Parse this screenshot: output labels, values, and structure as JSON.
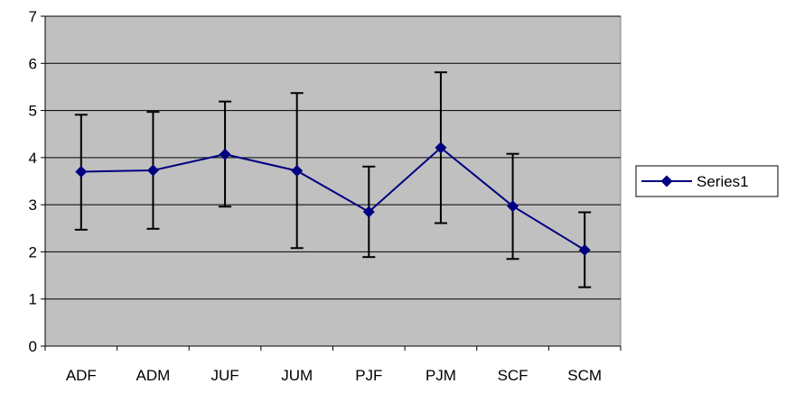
{
  "chart_data": {
    "type": "line",
    "categories": [
      "ADF",
      "ADM",
      "JUF",
      "JUM",
      "PJF",
      "PJM",
      "SCF",
      "SCM"
    ],
    "series": [
      {
        "name": "Series1",
        "values": [
          3.7,
          3.73,
          4.07,
          3.72,
          2.85,
          4.21,
          2.97,
          2.04
        ],
        "error_low": [
          2.47,
          2.49,
          2.96,
          2.08,
          1.89,
          2.61,
          1.85,
          1.25
        ],
        "error_high": [
          4.91,
          4.97,
          5.19,
          5.37,
          3.81,
          5.81,
          4.08,
          2.84
        ]
      }
    ],
    "title": "",
    "xlabel": "",
    "ylabel": "",
    "ylim": [
      0,
      7
    ],
    "yticks": [
      0,
      1,
      2,
      3,
      4,
      5,
      6,
      7
    ],
    "grid": true,
    "legend_position": "right",
    "colors": {
      "plot_background": "#c0c0c0",
      "series_line": "#000080",
      "error_bars": "#000000",
      "gridlines": "#000000"
    }
  }
}
